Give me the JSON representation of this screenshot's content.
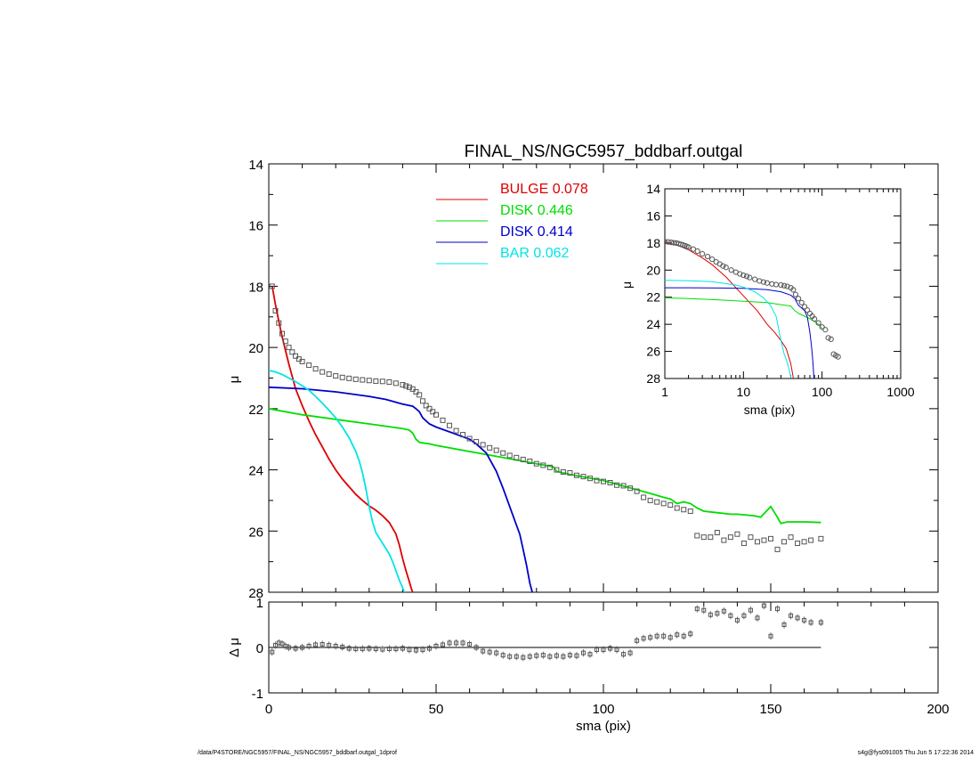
{
  "chart_data": [
    {
      "type": "scatter",
      "title": "FINAL_NS/NGC5957_bddbarf.outgal",
      "xlabel": "",
      "ylabel": "μ",
      "xlim": [
        0,
        200
      ],
      "ylim": [
        28,
        14
      ],
      "y_inverted": true,
      "yticks": [
        14,
        16,
        18,
        20,
        22,
        24,
        26,
        28
      ],
      "xticks": [
        0,
        50,
        100,
        150,
        200
      ],
      "grid": false,
      "legend_position": "top-center",
      "legend": [
        {
          "name": "BULGE",
          "value": "0.078",
          "color": "#dd0000"
        },
        {
          "name": "DISK",
          "value": "0.446",
          "color": "#00dd00"
        },
        {
          "name": "DISK",
          "value": "0.414",
          "color": "#0000cc"
        },
        {
          "name": "BAR",
          "value": "0.062",
          "color": "#00e5e5"
        }
      ],
      "observed_points": {
        "x": [
          1,
          2,
          3,
          4,
          5,
          6,
          7,
          8,
          9,
          10,
          12,
          14,
          16,
          18,
          20,
          22,
          24,
          26,
          28,
          30,
          32,
          34,
          36,
          38,
          40,
          41,
          42,
          43,
          44,
          45,
          46,
          47,
          48,
          49,
          50,
          52,
          54,
          56,
          58,
          60,
          62,
          64,
          66,
          68,
          70,
          72,
          74,
          76,
          78,
          80,
          82,
          84,
          86,
          88,
          90,
          92,
          94,
          96,
          98,
          100,
          102,
          104,
          106,
          108,
          110,
          112,
          114,
          116,
          118,
          120,
          122,
          124,
          126,
          128,
          130,
          132,
          134,
          136,
          138,
          140,
          142,
          144,
          146,
          148,
          150,
          152,
          154,
          156,
          158,
          160,
          162,
          165
        ],
        "y": [
          18.0,
          18.8,
          19.2,
          19.55,
          19.8,
          20.0,
          20.15,
          20.28,
          20.38,
          20.46,
          20.58,
          20.7,
          20.8,
          20.87,
          20.93,
          20.98,
          21.01,
          21.04,
          21.06,
          21.08,
          21.1,
          21.11,
          21.13,
          21.17,
          21.22,
          21.26,
          21.3,
          21.36,
          21.45,
          21.55,
          21.75,
          21.9,
          22.0,
          22.1,
          22.2,
          22.38,
          22.55,
          22.72,
          22.85,
          22.98,
          23.08,
          23.18,
          23.28,
          23.36,
          23.45,
          23.53,
          23.6,
          23.66,
          23.72,
          23.8,
          23.85,
          23.92,
          24.0,
          24.07,
          24.1,
          24.18,
          24.22,
          24.28,
          24.35,
          24.38,
          24.42,
          24.5,
          24.52,
          24.6,
          24.7,
          24.9,
          25.0,
          25.05,
          25.1,
          25.15,
          25.25,
          25.3,
          25.35,
          26.15,
          26.2,
          26.2,
          26.05,
          26.3,
          26.2,
          26.1,
          26.4,
          26.2,
          26.35,
          26.3,
          26.25,
          26.6,
          26.35,
          26.2,
          26.4,
          26.35,
          26.3,
          26.25
        ]
      },
      "series": [
        {
          "component": "BULGE",
          "color": "#dd0000",
          "x": [
            1,
            2,
            3,
            4,
            5,
            6,
            8,
            10,
            12,
            14,
            16,
            18,
            20,
            22,
            24,
            26,
            28,
            30,
            32,
            34,
            36,
            38,
            39,
            40,
            41,
            42,
            42.5,
            43,
            43.5
          ],
          "y": [
            18.0,
            18.6,
            19.15,
            19.65,
            20.1,
            20.55,
            21.35,
            21.9,
            22.4,
            22.85,
            23.25,
            23.65,
            24.0,
            24.3,
            24.55,
            24.8,
            25.0,
            25.18,
            25.32,
            25.5,
            25.72,
            26.1,
            26.45,
            26.9,
            27.3,
            27.65,
            27.85,
            28.0,
            28.1
          ]
        },
        {
          "component": "DISK",
          "color": "#00dd00",
          "x": [
            0,
            10,
            20,
            30,
            40,
            42,
            43,
            44,
            45,
            46,
            48,
            50,
            60,
            70,
            80,
            85,
            86,
            90,
            100,
            105,
            110,
            115,
            118,
            120,
            122,
            124,
            126,
            128,
            130,
            134,
            138,
            140,
            145,
            147,
            150,
            152,
            153,
            155,
            160,
            165
          ],
          "y": [
            22.0,
            22.2,
            22.35,
            22.5,
            22.65,
            22.7,
            22.8,
            23.0,
            23.1,
            23.12,
            23.15,
            23.2,
            23.4,
            23.6,
            23.8,
            23.9,
            24.05,
            24.15,
            24.35,
            24.5,
            24.65,
            24.8,
            24.9,
            24.95,
            25.1,
            25.05,
            25.1,
            25.25,
            25.35,
            25.4,
            25.45,
            25.45,
            25.5,
            25.55,
            25.2,
            25.55,
            25.75,
            25.7,
            25.7,
            25.72
          ]
        },
        {
          "component": "DISK",
          "color": "#0000cc",
          "x": [
            0,
            10,
            20,
            30,
            35,
            40,
            43,
            44,
            45,
            46,
            48,
            50,
            55,
            60,
            62,
            65,
            68,
            70,
            72,
            74,
            75,
            76,
            77,
            78,
            79
          ],
          "y": [
            21.3,
            21.35,
            21.45,
            21.6,
            21.7,
            21.85,
            21.92,
            22.0,
            22.1,
            22.3,
            22.5,
            22.6,
            22.8,
            23.0,
            23.15,
            23.45,
            24.05,
            24.6,
            25.2,
            25.8,
            26.1,
            26.6,
            27.1,
            27.7,
            28.1
          ]
        },
        {
          "component": "BAR",
          "color": "#00e5e5",
          "x": [
            0,
            2,
            4,
            6,
            8,
            10,
            12,
            14,
            16,
            18,
            20,
            22,
            24,
            26,
            27,
            28,
            29,
            30,
            31,
            32,
            34,
            36,
            37,
            38,
            39,
            40,
            40.5,
            41
          ],
          "y": [
            20.75,
            20.8,
            20.88,
            21.0,
            21.12,
            21.25,
            21.4,
            21.6,
            21.82,
            22.05,
            22.3,
            22.6,
            22.95,
            23.4,
            23.7,
            24.1,
            24.6,
            25.2,
            25.7,
            26.05,
            26.4,
            26.75,
            27.0,
            27.3,
            27.6,
            27.85,
            28.0,
            28.1
          ]
        }
      ]
    },
    {
      "type": "scatter",
      "title": "",
      "xlabel": "sma (pix)",
      "ylabel": "Δ μ",
      "xlim": [
        0,
        200
      ],
      "ylim": [
        -1,
        1
      ],
      "yticks": [
        -1,
        0,
        1
      ],
      "xticks": [
        0,
        50,
        100,
        150,
        200
      ],
      "grid": false,
      "reference_line": {
        "y": 0,
        "x": [
          0,
          165
        ]
      },
      "residual_points": {
        "x": [
          1,
          2,
          3,
          4,
          5,
          6,
          8,
          10,
          12,
          14,
          16,
          18,
          20,
          22,
          24,
          26,
          28,
          30,
          32,
          34,
          36,
          38,
          40,
          42,
          44,
          46,
          48,
          50,
          52,
          54,
          56,
          58,
          60,
          62,
          64,
          66,
          68,
          70,
          72,
          74,
          76,
          78,
          80,
          82,
          84,
          86,
          88,
          90,
          92,
          94,
          96,
          98,
          100,
          102,
          104,
          106,
          108,
          110,
          112,
          114,
          116,
          118,
          120,
          122,
          124,
          126,
          128,
          130,
          132,
          134,
          136,
          138,
          140,
          142,
          144,
          146,
          148,
          150,
          152,
          154,
          156,
          158,
          160,
          162,
          165
        ],
        "y": [
          -0.1,
          0.05,
          0.1,
          0.08,
          0.03,
          0.0,
          -0.02,
          0.0,
          0.03,
          0.06,
          0.07,
          0.05,
          0.03,
          0.01,
          -0.02,
          -0.03,
          -0.03,
          -0.02,
          -0.03,
          -0.04,
          -0.03,
          -0.03,
          -0.02,
          -0.05,
          -0.06,
          -0.05,
          -0.02,
          0.03,
          0.06,
          0.1,
          0.1,
          0.1,
          0.07,
          0.0,
          -0.08,
          -0.1,
          -0.12,
          -0.17,
          -0.2,
          -0.2,
          -0.22,
          -0.2,
          -0.18,
          -0.17,
          -0.2,
          -0.18,
          -0.2,
          -0.17,
          -0.18,
          -0.12,
          -0.15,
          -0.05,
          -0.05,
          -0.02,
          -0.05,
          -0.15,
          -0.12,
          0.15,
          0.2,
          0.22,
          0.25,
          0.25,
          0.22,
          0.28,
          0.25,
          0.3,
          0.85,
          0.82,
          0.72,
          0.75,
          0.8,
          0.7,
          0.6,
          0.7,
          0.82,
          0.65,
          0.92,
          0.25,
          0.85,
          0.5,
          0.7,
          0.65,
          0.6,
          0.55,
          0.55
        ]
      },
      "error_bar": 0.08
    },
    {
      "type": "scatter",
      "title": "",
      "xlabel": "sma (pix)",
      "ylabel": "μ",
      "x_scale": "log",
      "xlim": [
        1,
        1000
      ],
      "ylim": [
        28,
        14
      ],
      "y_inverted": true,
      "yticks": [
        14,
        16,
        18,
        20,
        22,
        24,
        26,
        28
      ],
      "xticks": [
        1,
        10,
        100,
        1000
      ],
      "grid": false,
      "observed_points": {
        "x": [
          1,
          1.1,
          1.2,
          1.3,
          1.4,
          1.5,
          1.6,
          1.7,
          1.8,
          1.9,
          2.0,
          2.3,
          2.6,
          3.0,
          3.5,
          4,
          4.5,
          5,
          5.5,
          6,
          7,
          8,
          9,
          10,
          11,
          12,
          14,
          16,
          18,
          20,
          23,
          26,
          30,
          33,
          36,
          40,
          43,
          46,
          50,
          55,
          60,
          65,
          70,
          75,
          80,
          90,
          100,
          110,
          120,
          130,
          140,
          150,
          160
        ],
        "y": [
          17.9,
          17.92,
          17.95,
          17.98,
          18.0,
          18.05,
          18.1,
          18.15,
          18.2,
          18.25,
          18.3,
          18.45,
          18.6,
          18.8,
          19.0,
          19.2,
          19.4,
          19.55,
          19.7,
          19.8,
          20.0,
          20.15,
          20.28,
          20.38,
          20.46,
          20.55,
          20.68,
          20.8,
          20.88,
          20.95,
          21.02,
          21.07,
          21.1,
          21.15,
          21.2,
          21.3,
          21.45,
          21.8,
          22.1,
          22.4,
          22.7,
          22.95,
          23.2,
          23.4,
          23.6,
          23.9,
          24.2,
          24.4,
          25.0,
          25.1,
          26.2,
          26.3,
          26.4
        ]
      },
      "series": [
        {
          "component": "BULGE",
          "color": "#dd0000",
          "x": [
            1,
            1.5,
            2,
            3,
            4,
            5,
            6,
            8,
            10,
            12,
            15,
            20,
            25,
            30,
            35,
            40,
            42,
            43.5
          ],
          "y": [
            18.0,
            18.2,
            18.5,
            19.1,
            19.6,
            20.1,
            20.5,
            21.3,
            21.9,
            22.4,
            23.0,
            24.0,
            24.6,
            25.2,
            25.8,
            26.9,
            27.6,
            28.1
          ]
        },
        {
          "component": "DISK",
          "color": "#00dd00",
          "x": [
            1,
            2,
            5,
            10,
            20,
            30,
            40,
            45,
            48,
            50,
            55,
            60,
            70,
            80,
            90,
            100
          ],
          "y": [
            22.05,
            22.1,
            22.2,
            22.3,
            22.4,
            22.55,
            22.65,
            23.0,
            23.1,
            23.2,
            23.3,
            23.4,
            23.6,
            23.8,
            24.0,
            24.3
          ]
        },
        {
          "component": "DISK",
          "color": "#0000cc",
          "x": [
            1,
            2,
            5,
            10,
            20,
            30,
            40,
            45,
            50,
            55,
            60,
            65,
            70,
            74,
            77,
            79
          ],
          "y": [
            21.3,
            21.3,
            21.32,
            21.35,
            21.45,
            21.6,
            21.85,
            22.1,
            22.6,
            22.8,
            23.0,
            23.45,
            24.6,
            25.8,
            27.0,
            28.1
          ]
        },
        {
          "component": "BAR",
          "color": "#00e5e5",
          "x": [
            1,
            2,
            4,
            6,
            8,
            10,
            14,
            18,
            22,
            26,
            30,
            33,
            36,
            38,
            40,
            41
          ],
          "y": [
            20.75,
            20.78,
            20.85,
            21.0,
            21.1,
            21.25,
            21.6,
            22.05,
            22.6,
            23.4,
            25.2,
            26.2,
            26.8,
            27.3,
            27.85,
            28.1
          ]
        }
      ]
    }
  ],
  "footer": {
    "left": "/data/P4STORE/NGC5957/FINAL_NS/NGC5957_bddbarf.outgal_1dprof",
    "right": "s4g@fys091005  Thu Jun  5 17:22:36 2014"
  }
}
